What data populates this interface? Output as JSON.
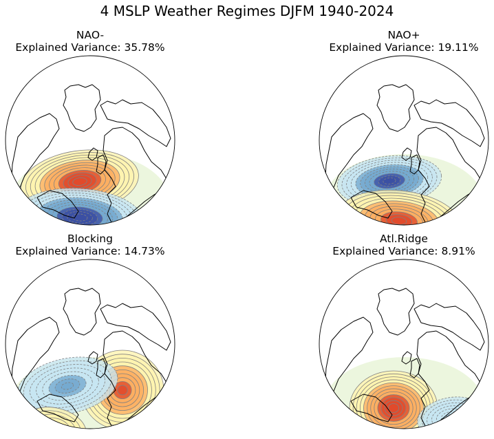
{
  "figure": {
    "title": "4 MSLP Weather Regimes DJFM 1940-2024",
    "panels": [
      {
        "name": "NAO-",
        "variance_text": "Explained Variance: 35.78%",
        "centers": [
          {
            "sign": "positive",
            "strength": 0.95,
            "location": "Greenland / Iceland"
          },
          {
            "sign": "negative",
            "strength": 1.0,
            "location": "central North Atlantic"
          }
        ]
      },
      {
        "name": "NAO+",
        "variance_text": "Explained Variance: 19.11%",
        "centers": [
          {
            "sign": "negative",
            "strength": 0.85,
            "location": "Iceland / Norwegian Sea"
          },
          {
            "sign": "positive",
            "strength": 0.85,
            "location": "subtropical Atlantic / Azores"
          }
        ]
      },
      {
        "name": "Blocking",
        "variance_text": "Explained Variance: 14.73%",
        "centers": [
          {
            "sign": "positive",
            "strength": 0.8,
            "location": "Scandinavia"
          },
          {
            "sign": "negative",
            "strength": 0.55,
            "location": "Greenland / NW Atlantic"
          },
          {
            "sign": "positive",
            "strength": 0.3,
            "location": "western subtropical Atlantic"
          }
        ]
      },
      {
        "name": "Atl.Ridge",
        "variance_text": "Explained Variance: 8.91%",
        "centers": [
          {
            "sign": "positive",
            "strength": 0.95,
            "location": "central North Atlantic"
          },
          {
            "sign": "negative",
            "strength": 0.35,
            "location": "Europe"
          }
        ]
      }
    ],
    "colormap": {
      "negative_strong": "#3b4fa3",
      "negative_mid": "#74a9cf",
      "negative_weak": "#c6e6f2",
      "near_zero": "#eaf5da",
      "positive_weak": "#fff3b0",
      "positive_mid": "#fdae61",
      "positive_strong": "#e04a2b"
    },
    "map": {
      "projection": "orthographic",
      "coastline_color": "#000000",
      "contour_color": "#808080"
    }
  }
}
